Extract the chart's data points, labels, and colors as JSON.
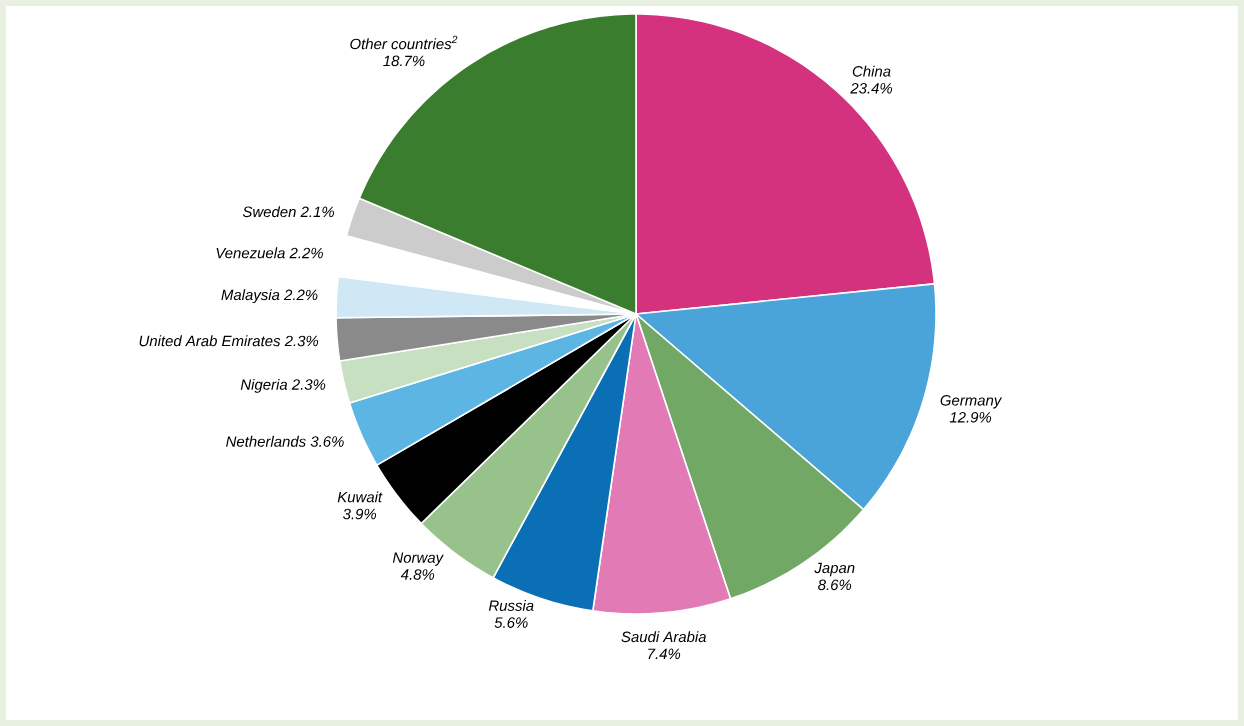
{
  "chart_data": {
    "type": "pie",
    "categories": [
      "China",
      "Germany",
      "Japan",
      "Saudi Arabia",
      "Russia",
      "Norway",
      "Kuwait",
      "Netherlands",
      "Nigeria",
      "United Arab Emirates",
      "Malaysia",
      "Venezuela",
      "Sweden",
      "Other countries$^{2}$"
    ],
    "values": [
      23.4,
      12.9,
      8.6,
      7.4,
      5.6,
      4.8,
      3.9,
      3.6,
      2.3,
      2.3,
      2.2,
      2.2,
      2.1,
      18.7
    ],
    "value_labels": [
      "23.4%",
      "12.9%",
      "8.6%",
      "7.4%",
      "5.6%",
      "4.8%",
      "3.9%",
      "3.6%",
      "2.3%",
      "2.3%",
      "2.2%",
      "2.2%",
      "2.1%",
      "18.7%"
    ],
    "colors": [
      "#d4317f",
      "#4aa3d9",
      "#72a866",
      "#e27ab5",
      "#0b6fb5",
      "#98c28c",
      "#000000",
      "#5cb5e2",
      "#c7e0c1",
      "#8a8a8a",
      "#d0e7f5",
      "#ffffff",
      "#cccccc",
      "#3b7d2f"
    ]
  }
}
